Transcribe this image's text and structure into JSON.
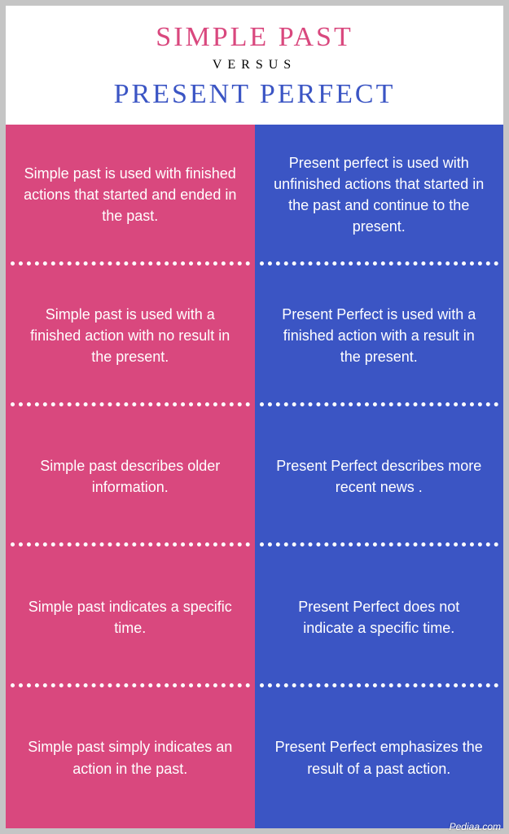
{
  "header": {
    "title_left": "SIMPLE PAST",
    "versus": "VERSUS",
    "title_right": "PRESENT PERFECT",
    "title_left_color": "#d9487e",
    "title_right_color": "#3b55c4",
    "title_fontsize": 34,
    "versus_fontsize": 16
  },
  "columns": {
    "left_bg": "#d9487e",
    "right_bg": "#3b55c4",
    "text_color": "#ffffff",
    "divider_color": "#ffffff",
    "cell_fontsize": 18
  },
  "rows": [
    {
      "left": "Simple past is used with finished actions that started and ended in the past.",
      "right": "Present perfect is used with unfinished actions that started in the past and continue to the present."
    },
    {
      "left": "Simple past is used with a finished action with no result in the present.",
      "right": "Present Perfect is used with a finished action with a result in the present."
    },
    {
      "left": "Simple past describes older information.",
      "right": "Present Perfect describes more recent news ."
    },
    {
      "left": "Simple past indicates a specific time.",
      "right": "Present Perfect does not indicate a specific time."
    },
    {
      "left": "Simple past simply indicates an action in the past.",
      "right": "Present Perfect emphasizes the result of a past action."
    }
  ],
  "attribution": "Pediaa.com"
}
